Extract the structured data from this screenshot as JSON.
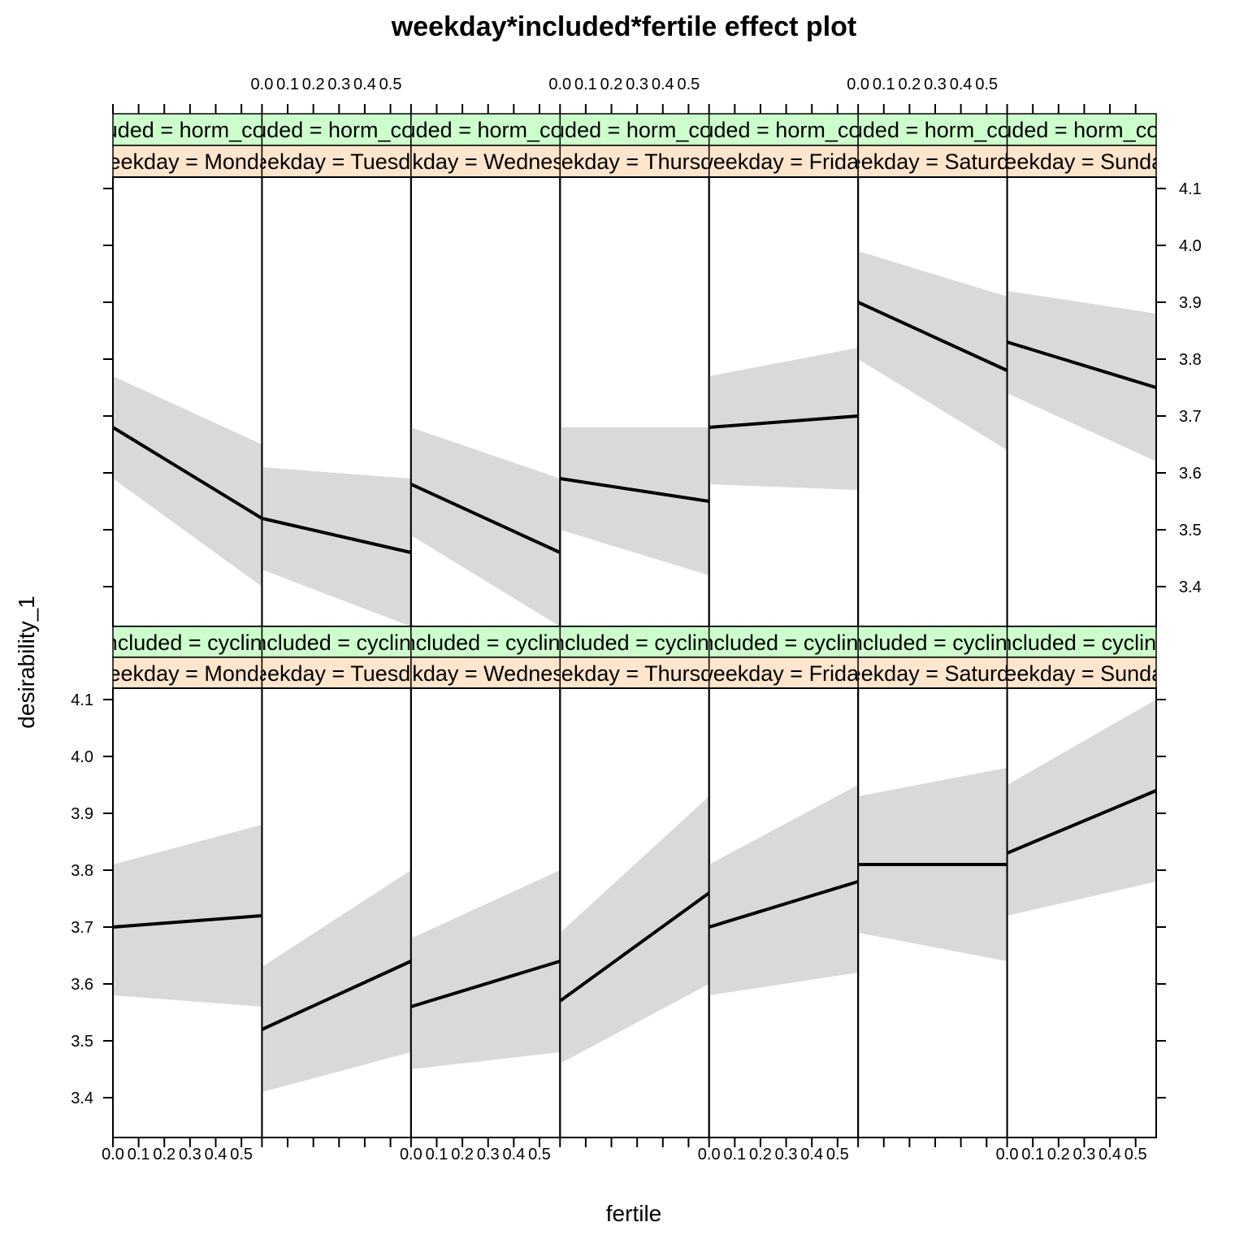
{
  "chart_data": {
    "type": "line",
    "title": "weekday*included*fertile effect plot",
    "xlabel": "fertile",
    "ylabel": "desirability_1",
    "x": [
      0.0,
      0.58
    ],
    "xlim": [
      0.0,
      0.58
    ],
    "ylim": [
      3.33,
      4.12
    ],
    "x_ticks": [
      0.0,
      0.1,
      0.2,
      0.3,
      0.4,
      0.5
    ],
    "x_tick_labels": [
      "0.0",
      "0.1",
      "0.2",
      "0.3",
      "0.4",
      "0.5"
    ],
    "y_ticks": [
      3.4,
      3.5,
      3.6,
      3.7,
      3.8,
      3.9,
      4.0,
      4.1
    ],
    "y_tick_labels": [
      "3.4",
      "3.5",
      "3.6",
      "3.7",
      "3.8",
      "3.9",
      "4.0",
      "4.1"
    ],
    "band": "95% confidence band",
    "colors": {
      "line": "#000000",
      "band": "#d9d9d9",
      "strip_included": "#ccffcc",
      "strip_weekday": "#ffe5cc"
    },
    "rows": [
      {
        "included_strip": "included = horm_contra",
        "panels": [
          {
            "weekday_strip": "weekday = Monday",
            "fit": [
              3.68,
              3.52
            ],
            "lower": [
              3.59,
              3.4
            ],
            "upper": [
              3.77,
              3.65
            ]
          },
          {
            "weekday_strip": "weekday = Tuesday",
            "fit": [
              3.52,
              3.46
            ],
            "lower": [
              3.43,
              3.33
            ],
            "upper": [
              3.61,
              3.59
            ]
          },
          {
            "weekday_strip": "weekday = Wednesday",
            "fit": [
              3.58,
              3.46
            ],
            "lower": [
              3.49,
              3.33
            ],
            "upper": [
              3.68,
              3.59
            ]
          },
          {
            "weekday_strip": "weekday = Thursday",
            "fit": [
              3.59,
              3.55
            ],
            "lower": [
              3.5,
              3.42
            ],
            "upper": [
              3.68,
              3.68
            ]
          },
          {
            "weekday_strip": "weekday = Friday",
            "fit": [
              3.68,
              3.7
            ],
            "lower": [
              3.58,
              3.57
            ],
            "upper": [
              3.77,
              3.82
            ]
          },
          {
            "weekday_strip": "weekday = Saturday",
            "fit": [
              3.9,
              3.78
            ],
            "lower": [
              3.8,
              3.64
            ],
            "upper": [
              3.99,
              3.91
            ]
          },
          {
            "weekday_strip": "weekday = Sunday",
            "fit": [
              3.83,
              3.75
            ],
            "lower": [
              3.74,
              3.62
            ],
            "upper": [
              3.92,
              3.88
            ]
          }
        ]
      },
      {
        "included_strip": "included = cycling",
        "panels": [
          {
            "weekday_strip": "weekday = Monday",
            "fit": [
              3.7,
              3.72
            ],
            "lower": [
              3.58,
              3.56
            ],
            "upper": [
              3.81,
              3.88
            ]
          },
          {
            "weekday_strip": "weekday = Tuesday",
            "fit": [
              3.52,
              3.64
            ],
            "lower": [
              3.41,
              3.48
            ],
            "upper": [
              3.63,
              3.8
            ]
          },
          {
            "weekday_strip": "weekday = Wednesday",
            "fit": [
              3.56,
              3.64
            ],
            "lower": [
              3.45,
              3.48
            ],
            "upper": [
              3.68,
              3.8
            ]
          },
          {
            "weekday_strip": "weekday = Thursday",
            "fit": [
              3.57,
              3.76
            ],
            "lower": [
              3.46,
              3.6
            ],
            "upper": [
              3.69,
              3.93
            ]
          },
          {
            "weekday_strip": "weekday = Friday",
            "fit": [
              3.7,
              3.78
            ],
            "lower": [
              3.58,
              3.62
            ],
            "upper": [
              3.81,
              3.95
            ]
          },
          {
            "weekday_strip": "weekday = Saturday",
            "fit": [
              3.81,
              3.81
            ],
            "lower": [
              3.69,
              3.64
            ],
            "upper": [
              3.93,
              3.98
            ]
          },
          {
            "weekday_strip": "weekday = Sunday",
            "fit": [
              3.83,
              3.94
            ],
            "lower": [
              3.72,
              3.78
            ],
            "upper": [
              3.95,
              4.1
            ]
          }
        ]
      }
    ]
  }
}
